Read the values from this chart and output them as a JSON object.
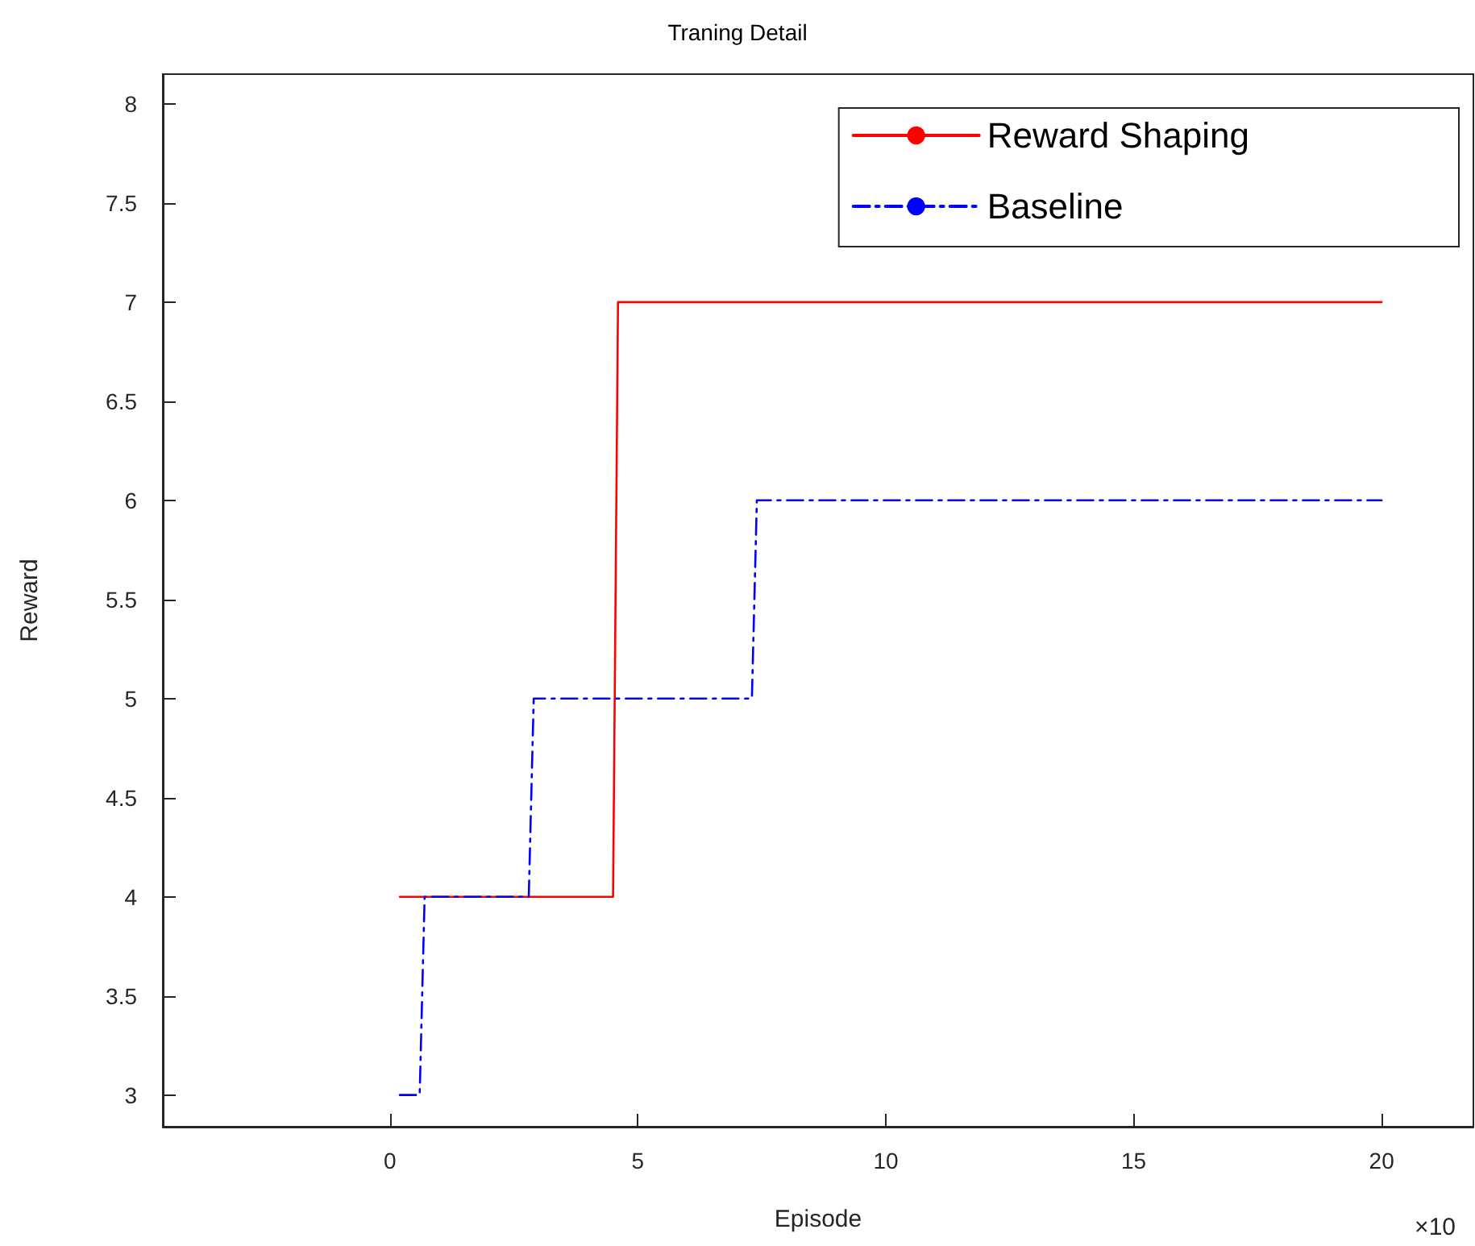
{
  "chart_data": {
    "type": "line",
    "title": "Traning Detail",
    "xlabel": "Episode",
    "ylabel": "Reward",
    "annotations": [
      "×10"
    ],
    "xlim": [
      -4.58,
      21.85
    ],
    "xticks": [
      0,
      5,
      10,
      15,
      20
    ],
    "ylim": [
      2.84,
      8.15
    ],
    "yticks": [
      3,
      3.5,
      4,
      4.5,
      5,
      5.5,
      6,
      6.5,
      7,
      7.5,
      8
    ],
    "grid": false,
    "legend": "top right",
    "marker": "none",
    "series": [
      {
        "name": "Reward Shaping",
        "color": "#ff0000",
        "line_style": "solid",
        "x": [
          0.2,
          4.5,
          4.6,
          20
        ],
        "values": [
          4,
          4,
          7,
          7
        ]
      },
      {
        "name": "Baseline",
        "color": "#0000ff",
        "line_style": "dashed",
        "x": [
          0.2,
          0.6,
          0.7,
          2.8,
          2.9,
          7.3,
          7.4,
          20
        ],
        "values": [
          3,
          3,
          4,
          4,
          5,
          5,
          6,
          6
        ]
      }
    ]
  }
}
